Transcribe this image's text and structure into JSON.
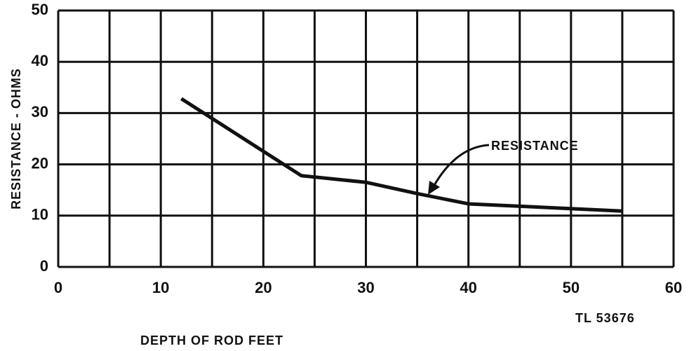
{
  "chart_data": {
    "type": "line",
    "xlabel": "DEPTH OF ROD FEET",
    "ylabel": "RESISTANCE - OHMS",
    "figure_id": "TL 53676",
    "x": [
      12,
      23.7,
      30,
      35,
      40,
      55
    ],
    "series": [
      {
        "name": "RESISTANCE",
        "color": "#111111",
        "values": [
          32.8,
          17.8,
          16.5,
          14.3,
          12.3,
          10.9
        ]
      }
    ],
    "xlim": [
      0,
      60
    ],
    "xticks": [
      0,
      10,
      20,
      30,
      40,
      50,
      60
    ],
    "xminor_grid": [
      5,
      15,
      25,
      35,
      45,
      55
    ],
    "ylim": [
      0,
      50
    ],
    "yticks": [
      0,
      10,
      20,
      30,
      40,
      50
    ],
    "grid": true
  }
}
